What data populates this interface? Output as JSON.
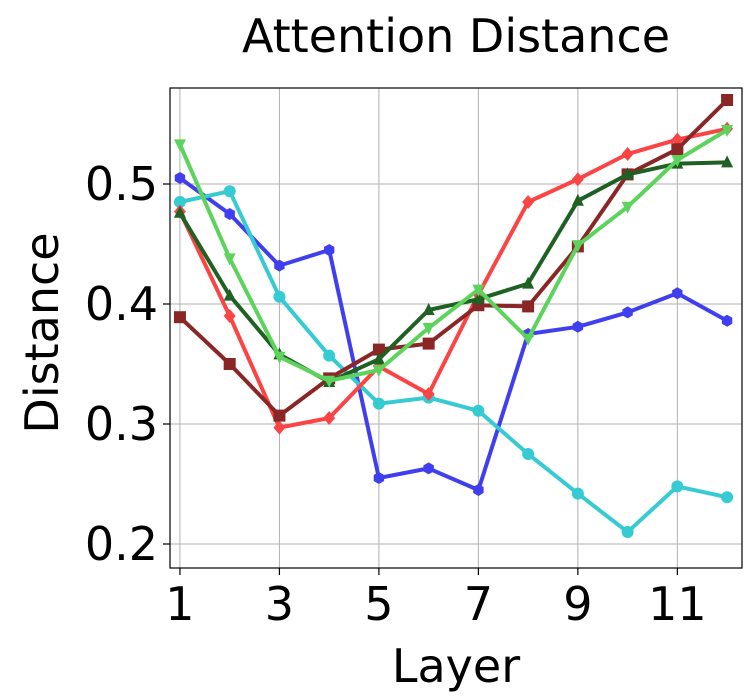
{
  "chart_data": {
    "type": "line",
    "title": "Attention Distance",
    "xlabel": "Layer",
    "ylabel": "Distance",
    "x": [
      1,
      2,
      3,
      4,
      5,
      6,
      7,
      8,
      9,
      10,
      11,
      12
    ],
    "xticks": [
      1,
      3,
      5,
      7,
      9,
      11
    ],
    "yticks": [
      0.2,
      0.3,
      0.4,
      0.5
    ],
    "xtick_labels": [
      "1",
      "3",
      "5",
      "7",
      "9",
      "11"
    ],
    "ytick_labels": [
      "0.2",
      "0.3",
      "0.4",
      "0.5"
    ],
    "xlim": [
      0.8,
      12.3
    ],
    "ylim": [
      0.18,
      0.58
    ],
    "grid": true,
    "series": [
      {
        "color": "#3f3ff0",
        "marker": "hexagon",
        "values": [
          0.505,
          0.475,
          0.432,
          0.445,
          0.255,
          0.263,
          0.245,
          0.375,
          0.381,
          0.393,
          0.409,
          0.386
        ]
      },
      {
        "color": "#36cbd3",
        "marker": "circle",
        "values": [
          0.485,
          0.494,
          0.406,
          0.357,
          0.317,
          0.322,
          0.311,
          0.275,
          0.242,
          0.21,
          0.248,
          0.239
        ]
      },
      {
        "color": "#fb4444",
        "marker": "diamond",
        "values": [
          0.477,
          0.39,
          0.297,
          0.305,
          0.348,
          0.325,
          0.408,
          0.485,
          0.504,
          0.525,
          0.537,
          0.546
        ]
      },
      {
        "color": "#8a2626",
        "marker": "square",
        "values": [
          0.389,
          0.35,
          0.307,
          0.338,
          0.362,
          0.367,
          0.399,
          0.398,
          0.448,
          0.508,
          0.529,
          0.57
        ]
      },
      {
        "color": "#1e6122",
        "marker": "triangle-up",
        "values": [
          0.476,
          0.407,
          0.358,
          0.335,
          0.354,
          0.395,
          0.404,
          0.417,
          0.486,
          0.508,
          0.517,
          0.518
        ]
      },
      {
        "color": "#5cd45c",
        "marker": "triangle-down",
        "values": [
          0.533,
          0.438,
          0.356,
          0.336,
          0.345,
          0.38,
          0.412,
          0.371,
          0.449,
          0.481,
          0.52,
          0.545
        ]
      }
    ]
  }
}
